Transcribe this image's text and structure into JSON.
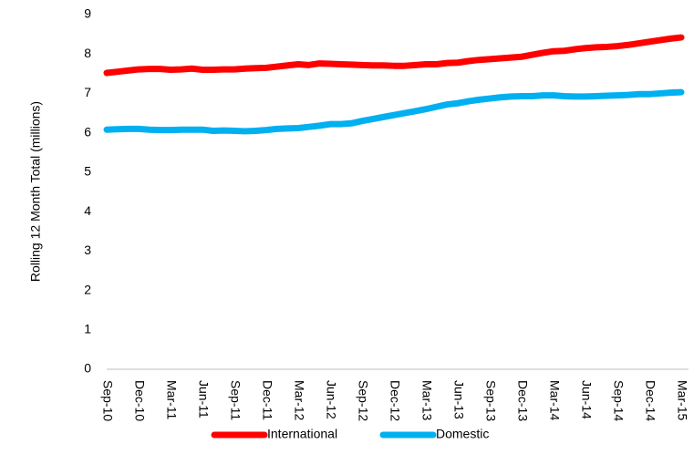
{
  "chart_data": {
    "type": "line",
    "y_label": "Rolling 12 Month Total (millions)",
    "categories": [
      "Sep-10",
      null,
      null,
      "Dec-10",
      null,
      null,
      "Mar-11",
      null,
      null,
      "Jun-11",
      null,
      null,
      "Sep-11",
      null,
      null,
      "Dec-11",
      null,
      null,
      "Mar-12",
      null,
      null,
      "Jun-12",
      null,
      null,
      "Sep-12",
      null,
      null,
      "Dec-12",
      null,
      null,
      "Mar-13",
      null,
      null,
      "Jun-13",
      null,
      null,
      "Sep-13",
      null,
      null,
      "Dec-13",
      null,
      null,
      "Mar-14",
      null,
      null,
      "Jun-14",
      null,
      null,
      "Sep-14",
      null,
      null,
      "Dec-14",
      null,
      null,
      "Mar-15"
    ],
    "series": [
      {
        "name": "International",
        "color": "#ff0000",
        "values": [
          7.52,
          7.55,
          7.58,
          7.61,
          7.62,
          7.62,
          7.6,
          7.61,
          7.63,
          7.6,
          7.6,
          7.61,
          7.61,
          7.63,
          7.64,
          7.65,
          7.68,
          7.71,
          7.74,
          7.72,
          7.76,
          7.75,
          7.74,
          7.73,
          7.72,
          7.71,
          7.71,
          7.7,
          7.7,
          7.72,
          7.74,
          7.74,
          7.77,
          7.78,
          7.82,
          7.85,
          7.87,
          7.89,
          7.91,
          7.93,
          7.98,
          8.03,
          8.07,
          8.08,
          8.12,
          8.15,
          8.17,
          8.18,
          8.2,
          8.23,
          8.27,
          8.31,
          8.35,
          8.39,
          8.42
        ]
      },
      {
        "name": "Domestic",
        "color": "#00b0f0",
        "values": [
          6.08,
          6.09,
          6.1,
          6.1,
          6.08,
          6.07,
          6.07,
          6.08,
          6.08,
          6.08,
          6.05,
          6.06,
          6.05,
          6.04,
          6.05,
          6.07,
          6.1,
          6.11,
          6.12,
          6.15,
          6.18,
          6.22,
          6.22,
          6.24,
          6.3,
          6.35,
          6.4,
          6.45,
          6.5,
          6.55,
          6.6,
          6.66,
          6.72,
          6.75,
          6.8,
          6.84,
          6.87,
          6.9,
          6.92,
          6.93,
          6.93,
          6.95,
          6.95,
          6.93,
          6.92,
          6.92,
          6.93,
          6.94,
          6.95,
          6.96,
          6.98,
          6.98,
          7.0,
          7.02,
          7.03
        ]
      }
    ],
    "ylim": [
      0,
      9
    ],
    "yticks": [
      0,
      1,
      2,
      3,
      4,
      5,
      6,
      7,
      8,
      9
    ],
    "legend": "bottom"
  }
}
